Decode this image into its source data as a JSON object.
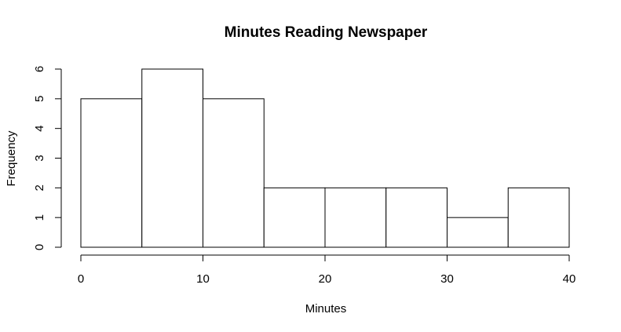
{
  "chart_data": {
    "type": "bar",
    "subtype": "histogram",
    "title": "Minutes Reading Newspaper",
    "xlabel": "Minutes",
    "ylabel": "Frequency",
    "bins": [
      {
        "start": 0,
        "end": 5,
        "count": 5
      },
      {
        "start": 5,
        "end": 10,
        "count": 6
      },
      {
        "start": 10,
        "end": 15,
        "count": 5
      },
      {
        "start": 15,
        "end": 20,
        "count": 2
      },
      {
        "start": 20,
        "end": 25,
        "count": 2
      },
      {
        "start": 25,
        "end": 30,
        "count": 2
      },
      {
        "start": 30,
        "end": 35,
        "count": 1
      },
      {
        "start": 35,
        "end": 40,
        "count": 2
      }
    ],
    "xlim": [
      0,
      40
    ],
    "ylim": [
      0,
      6
    ],
    "x_ticks": [
      "0",
      "10",
      "20",
      "30",
      "40"
    ],
    "y_ticks": [
      "0",
      "1",
      "2",
      "3",
      "4",
      "5",
      "6"
    ],
    "grid": false,
    "legend": "none",
    "bar_fill": "#ffffff",
    "bar_stroke": "#000000"
  }
}
